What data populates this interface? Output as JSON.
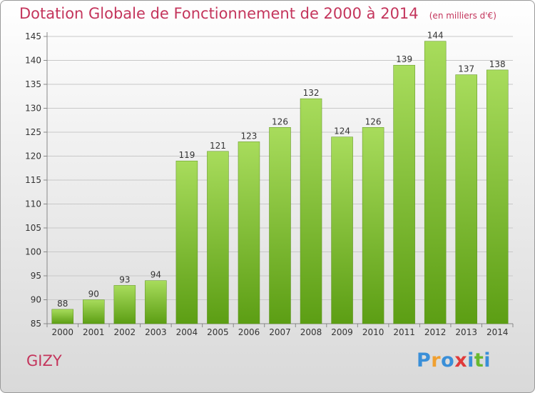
{
  "title": "Dotation Globale de Fonctionnement de 2000 à 2014",
  "unit_note": "(en milliers d'€)",
  "commune": "GIZY",
  "logo": {
    "letters": [
      "P",
      "r",
      "o",
      "x",
      "i",
      "t",
      "i"
    ],
    "colors": [
      "#3a8fd8",
      "#f0a030",
      "#3a8fd8",
      "#e03a3a",
      "#3a8fd8",
      "#68b82e",
      "#3a8fd8"
    ]
  },
  "colors": {
    "bar_light": "#a8dc5c",
    "bar_dark": "#5c9e14",
    "text": "#c4355c"
  },
  "chart_data": {
    "type": "bar",
    "categories": [
      "2000",
      "2001",
      "2002",
      "2003",
      "2004",
      "2005",
      "2006",
      "2007",
      "2008",
      "2009",
      "2010",
      "2011",
      "2012",
      "2013",
      "2014"
    ],
    "values": [
      88,
      90,
      93,
      94,
      119,
      121,
      123,
      126,
      132,
      124,
      126,
      139,
      144,
      137,
      138
    ],
    "ylim": [
      85,
      145
    ],
    "yticks": [
      85,
      90,
      95,
      100,
      105,
      110,
      115,
      120,
      125,
      130,
      135,
      140,
      145
    ],
    "grid": true,
    "legend": "none"
  }
}
